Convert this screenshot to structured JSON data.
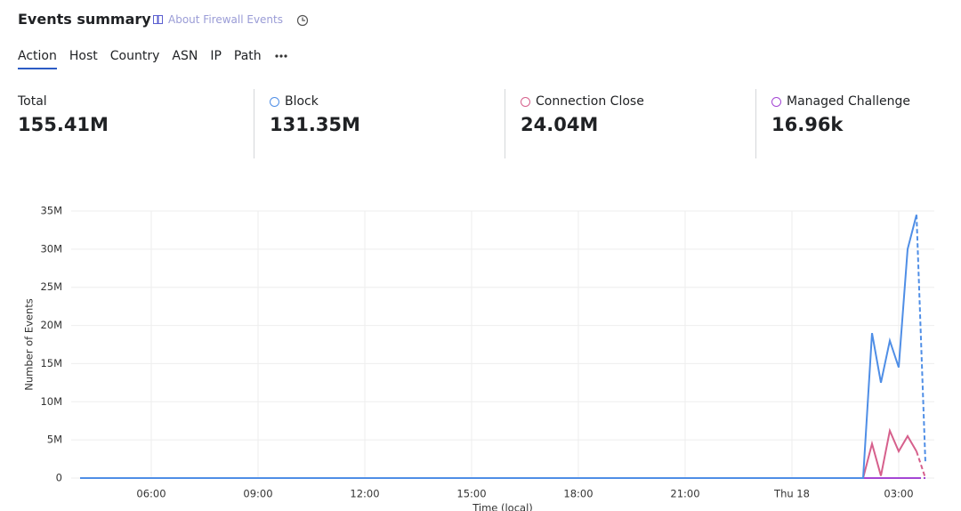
{
  "header": {
    "title": "Events summary",
    "link": "About Firewall Events"
  },
  "tabs": [
    "Action",
    "Host",
    "Country",
    "ASN",
    "IP",
    "Path"
  ],
  "total_label": "Total",
  "total": "155.41M",
  "chart_data": {
    "type": "line",
    "y_label": "Number of Events",
    "x_label": "Time (local)",
    "x": [
      4,
      26,
      26.25,
      26.5,
      26.75,
      27,
      27.25,
      27.5,
      27.75
    ],
    "series": [
      {
        "name": "Block",
        "total": "131.35M",
        "color": "#4f8ee6",
        "values": [
          0,
          0,
          19000000,
          12500000,
          18000000,
          14500000,
          30000000,
          34500000,
          2000000
        ]
      },
      {
        "name": "Connection Close",
        "total": "24.04M",
        "color": "#d6608c",
        "values": [
          0,
          0,
          4500000,
          300000,
          6200000,
          3500000,
          5500000,
          3500000,
          0
        ]
      },
      {
        "name": "Managed Challenge",
        "total": "16.96k",
        "color": "#a446d4",
        "values": [
          0,
          0,
          0,
          0,
          0,
          0,
          0,
          0,
          0
        ]
      }
    ],
    "last_segment_dashed": true,
    "xlim": [
      3.75,
      28
    ],
    "xticks": [
      {
        "value": 6,
        "label": "06:00"
      },
      {
        "value": 9,
        "label": "09:00"
      },
      {
        "value": 12,
        "label": "12:00"
      },
      {
        "value": 15,
        "label": "15:00"
      },
      {
        "value": 18,
        "label": "18:00"
      },
      {
        "value": 21,
        "label": "21:00"
      },
      {
        "value": 24,
        "label": "Thu 18"
      },
      {
        "value": 27,
        "label": "03:00"
      }
    ],
    "ylim": [
      0,
      35000000
    ],
    "yticks": [
      0,
      {
        "value": 5000000,
        "label": "5M"
      },
      {
        "value": 10000000,
        "label": "10M"
      },
      {
        "value": 15000000,
        "label": "15M"
      },
      {
        "value": 20000000,
        "label": "20M"
      },
      {
        "value": 25000000,
        "label": "25M"
      },
      {
        "value": 30000000,
        "label": "30M"
      },
      {
        "value": 35000000,
        "label": "35M"
      }
    ],
    "grid": true
  }
}
